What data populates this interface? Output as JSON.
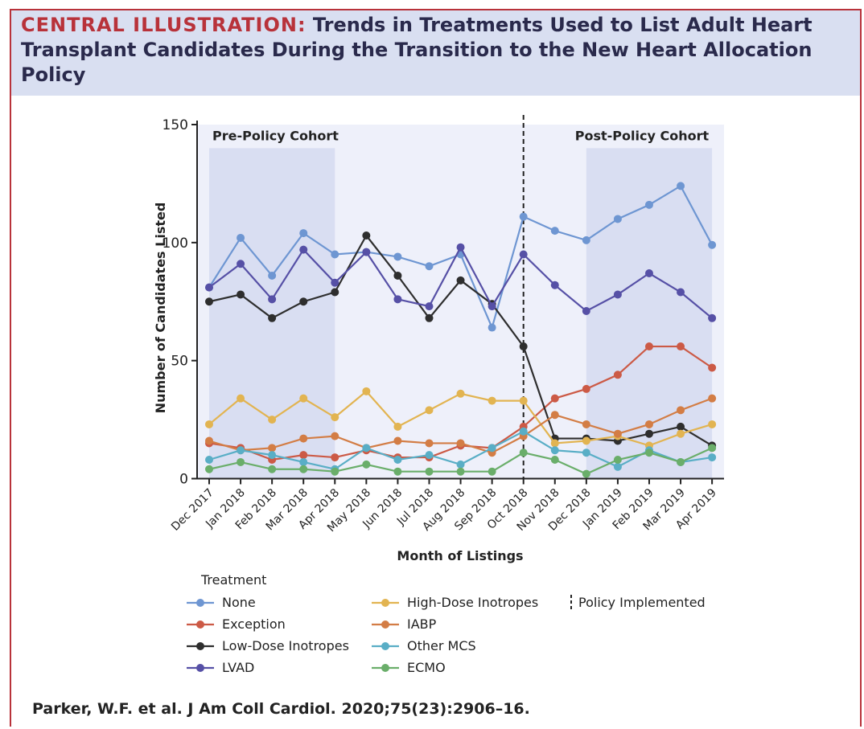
{
  "header": {
    "title_lead": "CENTRAL ILLUSTRATION:",
    "title_rest": "Trends in Treatments Used to List Adult Heart Transplant Candidates During the Transition to the New Heart Allocation Policy"
  },
  "citation": "Parker, W.F. et al. J Am Coll Cardiol. 2020;75(23):2906–16.",
  "chart_data": {
    "type": "line",
    "xlabel": "Month of Listings",
    "ylabel": "Number of Candidates Listed",
    "ylim": [
      0,
      150
    ],
    "yticks": [
      0,
      50,
      100,
      150
    ],
    "categories": [
      "Dec 2017",
      "Jan 2018",
      "Feb 2018",
      "Mar 2018",
      "Apr 2018",
      "May 2018",
      "Jun 2018",
      "Jul 2018",
      "Aug 2018",
      "Sep 2018",
      "Oct 2018",
      "Nov 2018",
      "Dec 2018",
      "Jan 2019",
      "Feb 2019",
      "Mar 2019",
      "Apr 2019"
    ],
    "cohorts": [
      {
        "label": "Pre-Policy Cohort",
        "from": "Dec 2017",
        "to": "Apr 2018"
      },
      {
        "label": "Post-Policy Cohort",
        "from": "Dec 2018",
        "to": "Apr 2019"
      }
    ],
    "policy_line_at": "Oct 2018",
    "policy_label": "Policy Implemented",
    "legend_title": "Treatment",
    "series": [
      {
        "name": "None",
        "color": "#6e96d2",
        "values": [
          81,
          102,
          86,
          104,
          95,
          96,
          94,
          90,
          95,
          64,
          111,
          105,
          101,
          110,
          116,
          124,
          99
        ]
      },
      {
        "name": "Exception",
        "color": "#cc5a46",
        "values": [
          15,
          13,
          8,
          10,
          9,
          12,
          9,
          9,
          14,
          13,
          22,
          34,
          38,
          44,
          56,
          56,
          47
        ]
      },
      {
        "name": "Low-Dose Inotropes",
        "color": "#2e2e2e",
        "values": [
          75,
          78,
          68,
          75,
          79,
          103,
          86,
          68,
          84,
          74,
          56,
          17,
          17,
          16,
          19,
          22,
          14
        ]
      },
      {
        "name": "LVAD",
        "color": "#5650a6",
        "values": [
          81,
          91,
          76,
          97,
          83,
          96,
          76,
          73,
          98,
          73,
          95,
          82,
          71,
          78,
          87,
          79,
          68
        ]
      },
      {
        "name": "High-Dose Inotropes",
        "color": "#e2b451",
        "values": [
          23,
          34,
          25,
          34,
          26,
          37,
          22,
          29,
          36,
          33,
          33,
          15,
          16,
          18,
          14,
          19,
          23
        ]
      },
      {
        "name": "IABP",
        "color": "#d37d45",
        "values": [
          16,
          12,
          13,
          17,
          18,
          13,
          16,
          15,
          15,
          11,
          18,
          27,
          23,
          19,
          23,
          29,
          34
        ]
      },
      {
        "name": "Other MCS",
        "color": "#59aec6",
        "values": [
          8,
          12,
          10,
          7,
          4,
          13,
          8,
          10,
          6,
          13,
          20,
          12,
          11,
          5,
          12,
          7,
          9
        ]
      },
      {
        "name": "ECMO",
        "color": "#6aae6a",
        "values": [
          4,
          7,
          4,
          4,
          3,
          6,
          3,
          3,
          3,
          3,
          11,
          8,
          2,
          8,
          11,
          7,
          13
        ]
      }
    ]
  }
}
